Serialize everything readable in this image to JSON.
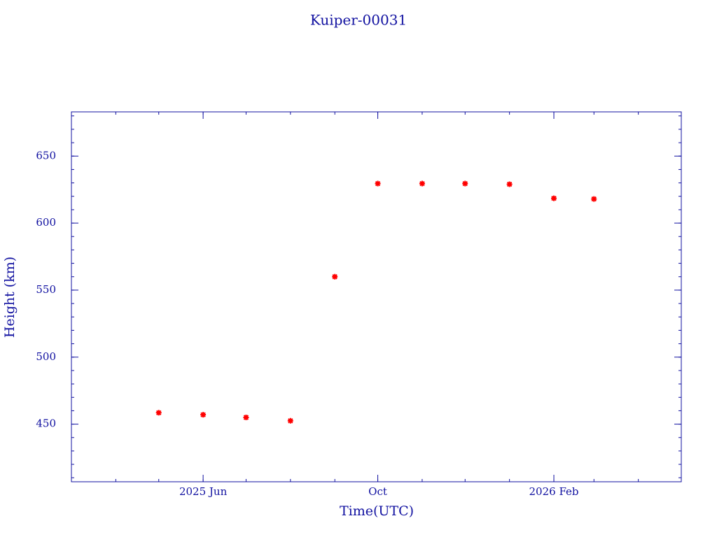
{
  "chart_data": {
    "type": "line",
    "title": "Kuiper-00031",
    "x_label": "Time(UTC)",
    "y_label": "Height (km)",
    "x": [
      "2025-05",
      "2025-06",
      "2025-07",
      "2025-08",
      "2025-09",
      "2025-10",
      "2025-11",
      "2025-12",
      "2026-01",
      "2026-02",
      "2026-03"
    ],
    "series": [
      {
        "color": "#ff0000",
        "line_color": "#00c8c8",
        "values": [
          458.5,
          457,
          455,
          452.5,
          560,
          629.5,
          629.5,
          629.5,
          629,
          618.5,
          618
        ]
      }
    ],
    "xlim": [
      "2025-03",
      "2026-05"
    ],
    "xticks": [
      {
        "value": "2025-06",
        "label": "2025 Jun"
      },
      {
        "value": "2025-10",
        "label": "Oct"
      },
      {
        "value": "2026-02",
        "label": "2026 Feb"
      }
    ],
    "ylim": [
      407,
      683
    ],
    "yticks": [
      450,
      500,
      550,
      600,
      650
    ],
    "grid": false
  }
}
